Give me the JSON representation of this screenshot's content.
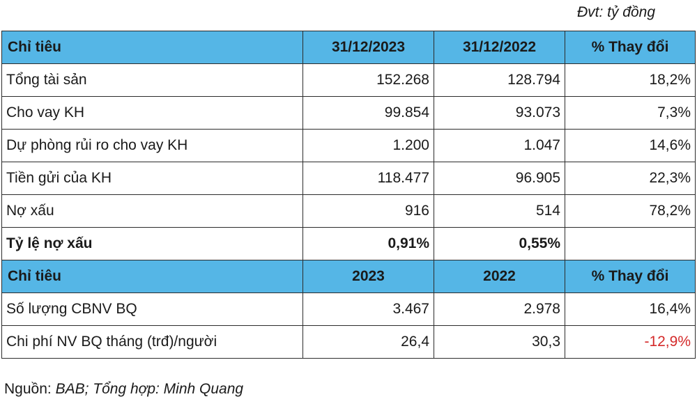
{
  "unit_note": "Đvt: tỷ đồng",
  "section1": {
    "header": [
      "Chỉ tiêu",
      "31/12/2023",
      "31/12/2022",
      "% Thay đổi"
    ],
    "rows": [
      {
        "label": "Tổng tài sản",
        "v2023": "152.268",
        "v2022": "128.794",
        "change": "18,2%"
      },
      {
        "label": "Cho vay KH",
        "v2023": "99.854",
        "v2022": "93.073",
        "change": "7,3%"
      },
      {
        "label": "Dự phòng rủi ro cho vay KH",
        "v2023": "1.200",
        "v2022": "1.047",
        "change": "14,6%"
      },
      {
        "label": "Tiền gửi của KH",
        "v2023": "118.477",
        "v2022": "96.905",
        "change": "22,3%"
      },
      {
        "label": "Nợ xấu",
        "v2023": "916",
        "v2022": "514",
        "change": "78,2%"
      },
      {
        "label": "Tỷ lệ nợ xấu",
        "v2023": "0,91%",
        "v2022": "0,55%",
        "change": ""
      }
    ]
  },
  "section2": {
    "header": [
      "Chỉ tiêu",
      "2023",
      "2022",
      "% Thay đổi"
    ],
    "rows": [
      {
        "label": "Số lượng CBNV BQ",
        "v2023": "3.467",
        "v2022": "2.978",
        "change": "16,4%"
      },
      {
        "label": "Chi phí NV BQ tháng (trđ)/người",
        "v2023": "26,4",
        "v2022": "30,3",
        "change": "-12,9%"
      }
    ]
  },
  "source": {
    "prefix": "Nguồn: ",
    "text": "BAB; Tổng hợp: Minh Quang"
  },
  "colors": {
    "header_bg": "#55b6e6",
    "negative": "#d42a2a",
    "border": "#2b2b2b"
  }
}
